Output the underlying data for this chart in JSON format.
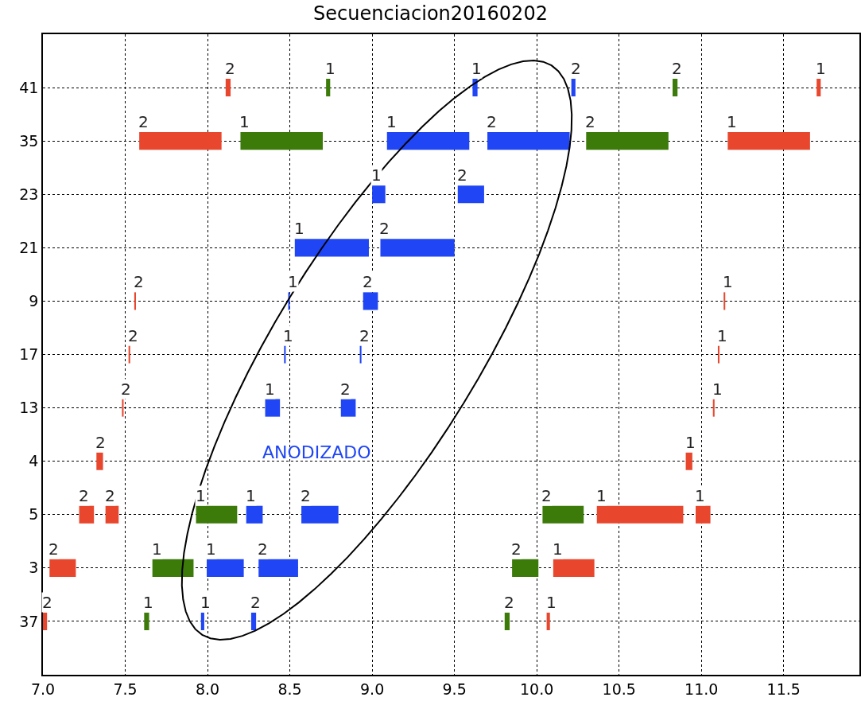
{
  "chart_data": {
    "type": "bar",
    "orientation": "horizontal",
    "title": "Secuenciacion20160202",
    "categories": [
      "41",
      "35",
      "23",
      "21",
      "9",
      "17",
      "13",
      "4",
      "5",
      "3",
      "37"
    ],
    "series": [
      {
        "name": "1",
        "values": [
          0.025,
          0.5,
          0.08,
          0.45,
          0.01,
          0.01,
          0.09,
          0.04,
          0.25,
          0.25,
          0.03
        ],
        "base": [
          8.72,
          8.2,
          9.0,
          8.53,
          8.49,
          8.465,
          8.35,
          10.905,
          7.93,
          7.665,
          7.615
        ],
        "colors": [
          "#3c7a0a",
          "#3c7a0a",
          "#1f45f5",
          "#1f45f5",
          "#1f45f5",
          "#1f45f5",
          "#1f45f5",
          "#e8472e",
          "#3c7a0a",
          "#3c7a0a",
          "#3c7a0a"
        ]
      },
      {
        "name": "1",
        "values": [
          0.03,
          0.5,
          null,
          null,
          0.01,
          0.01,
          0.01,
          null,
          0.1,
          0.225,
          0.02
        ],
        "base": [
          9.61,
          9.09,
          null,
          null,
          11.135,
          11.1,
          11.07,
          null,
          8.235,
          7.995,
          7.96
        ],
        "colors": [
          "#1f45f5",
          "#1f45f5",
          null,
          null,
          "#e8472e",
          "#e8472e",
          "#e8472e",
          null,
          "#1f45f5",
          "#1f45f5",
          "#1f45f5"
        ]
      },
      {
        "name": "1",
        "values": [
          0.025,
          0.5,
          null,
          null,
          null,
          null,
          null,
          null,
          0.525,
          0.25,
          0.02
        ],
        "base": [
          11.7,
          11.16,
          null,
          null,
          null,
          null,
          null,
          null,
          10.365,
          10.1,
          10.06
        ],
        "colors": [
          "#e8472e",
          "#e8472e",
          null,
          null,
          null,
          null,
          null,
          null,
          "#e8472e",
          "#e8472e",
          "#e8472e"
        ]
      },
      {
        "name": "1",
        "values": [
          null,
          null,
          null,
          null,
          null,
          null,
          null,
          null,
          0.09,
          null,
          null
        ],
        "base": [
          null,
          null,
          null,
          null,
          null,
          null,
          null,
          null,
          10.965,
          null,
          null
        ],
        "colors": [
          null,
          null,
          null,
          null,
          null,
          null,
          null,
          null,
          "#e8472e",
          null,
          null
        ]
      },
      {
        "name": "2",
        "values": [
          0.03,
          0.5,
          0.16,
          0.45,
          0.01,
          0.01,
          0.01,
          0.04,
          0.09,
          0.16,
          0.025
        ],
        "base": [
          8.11,
          7.585,
          9.52,
          9.05,
          7.555,
          7.52,
          7.48,
          7.325,
          7.22,
          7.04,
          7.0
        ],
        "colors": [
          "#e8472e",
          "#e8472e",
          "#1f45f5",
          "#1f45f5",
          "#e8472e",
          "#e8472e",
          "#e8472e",
          "#e8472e",
          "#e8472e",
          "#e8472e",
          "#e8472e"
        ]
      },
      {
        "name": "2",
        "values": [
          0.025,
          0.5,
          null,
          null,
          0.09,
          0.01,
          0.09,
          null,
          0.08,
          0.24,
          0.03
        ],
        "base": [
          10.21,
          9.7,
          null,
          null,
          8.945,
          8.925,
          8.81,
          null,
          7.38,
          8.31,
          8.265
        ],
        "colors": [
          "#1f45f5",
          "#1f45f5",
          null,
          null,
          "#1f45f5",
          "#1f45f5",
          "#1f45f5",
          null,
          "#e8472e",
          "#1f45f5",
          "#1f45f5"
        ]
      },
      {
        "name": "2",
        "values": [
          0.03,
          0.5,
          null,
          null,
          null,
          null,
          null,
          null,
          0.225,
          0.16,
          0.03
        ],
        "base": [
          10.825,
          10.3,
          null,
          null,
          null,
          null,
          null,
          null,
          8.57,
          9.85,
          9.805
        ],
        "colors": [
          "#3c7a0a",
          "#3c7a0a",
          null,
          null,
          null,
          null,
          null,
          null,
          "#1f45f5",
          "#3c7a0a",
          "#3c7a0a"
        ]
      },
      {
        "name": "2",
        "values": [
          null,
          null,
          null,
          null,
          null,
          null,
          null,
          null,
          0.25,
          null,
          null
        ],
        "base": [
          null,
          null,
          null,
          null,
          null,
          null,
          null,
          null,
          10.035,
          null,
          null
        ],
        "colors": [
          null,
          null,
          null,
          null,
          null,
          null,
          null,
          null,
          "#3c7a0a",
          null,
          null
        ]
      }
    ],
    "xlim": [
      7.0,
      11.96
    ],
    "xticks": [
      {
        "value": 7.0,
        "label": "7.0"
      },
      {
        "value": 7.5,
        "label": "7.5"
      },
      {
        "value": 8.0,
        "label": "8.0"
      },
      {
        "value": 8.5,
        "label": "8.5"
      },
      {
        "value": 9.0,
        "label": "9.0"
      },
      {
        "value": 9.5,
        "label": "9.5"
      },
      {
        "value": 10.0,
        "label": "10.0"
      },
      {
        "value": 10.5,
        "label": "10.5"
      },
      {
        "value": 11.0,
        "label": "11.0"
      },
      {
        "value": 11.5,
        "label": "11.5"
      }
    ],
    "annotations": [
      "ANODIZADO"
    ],
    "grid": true
  }
}
